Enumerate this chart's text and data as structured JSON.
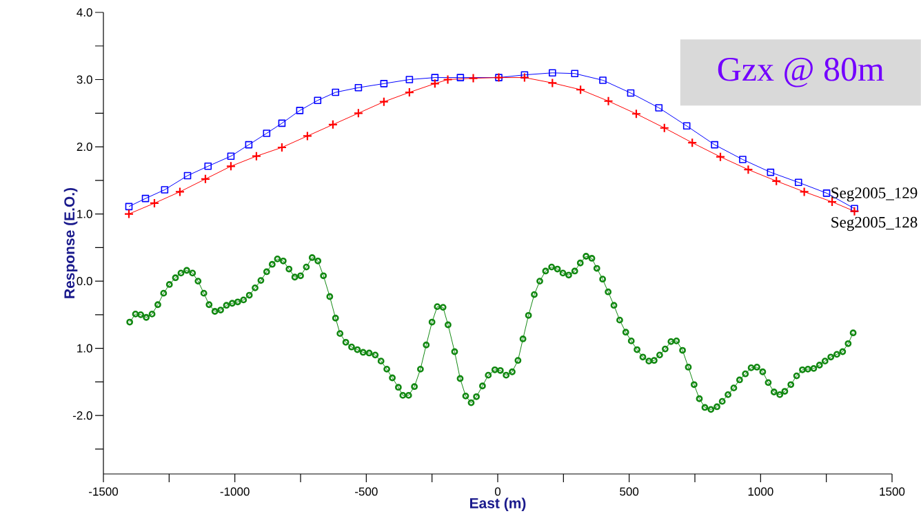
{
  "chart_data": {
    "type": "line",
    "xlabel": "East (m)",
    "ylabel": "Response (E.O.)",
    "annotations": [
      "Gzx @ 80m"
    ],
    "xlim": [
      -1500,
      1500
    ],
    "ylim": [
      -2.87,
      4.0
    ],
    "xticks": [
      -1500,
      {
        "value": -1250,
        "label": null
      },
      -1000,
      {
        "value": -750,
        "label": null
      },
      -500,
      {
        "value": -250,
        "label": null
      },
      0,
      {
        "value": 250,
        "label": null
      },
      500,
      {
        "value": 750,
        "label": null
      },
      1000,
      {
        "value": 1250,
        "label": null
      },
      1500
    ],
    "yticks": [
      {
        "value": -2.5,
        "label": null
      },
      {
        "value": -2,
        "label": "-2.0"
      },
      {
        "value": -1.5,
        "label": null
      },
      {
        "value": -1,
        "label": "1.0"
      },
      {
        "value": -0.5,
        "label": null
      },
      {
        "value": 0,
        "label": "0.0"
      },
      {
        "value": 0.5,
        "label": null
      },
      {
        "value": 1,
        "label": "1.0"
      },
      {
        "value": 1.5,
        "label": null
      },
      {
        "value": 2,
        "label": "2.0"
      },
      {
        "value": 2.5,
        "label": null
      },
      {
        "value": 3,
        "label": "3.0"
      },
      {
        "value": 3.5,
        "label": null
      },
      {
        "value": 4,
        "label": "4.0"
      }
    ],
    "series": [
      {
        "name": "Seg2005_129",
        "color": "#0000ff",
        "marker": "square",
        "x": [
          -1403,
          -1340,
          -1267,
          -1180,
          -1102,
          -1015,
          -947,
          -879,
          -821,
          -753,
          -685,
          -617,
          -530,
          -433,
          -336,
          -239,
          -142,
          4,
          102,
          208,
          293,
          400,
          506,
          613,
          719,
          825,
          932,
          1038,
          1144,
          1251,
          1357
        ],
        "values": [
          1.11,
          1.23,
          1.36,
          1.57,
          1.71,
          1.86,
          2.03,
          2.2,
          2.35,
          2.54,
          2.69,
          2.81,
          2.88,
          2.94,
          3.0,
          3.03,
          3.03,
          3.03,
          3.07,
          3.1,
          3.09,
          2.99,
          2.8,
          2.58,
          2.31,
          2.03,
          1.81,
          1.62,
          1.47,
          1.31,
          1.08
        ]
      },
      {
        "name": "Seg2005_128",
        "color": "#ff0000",
        "marker": "cross",
        "x": [
          -1403,
          -1306,
          -1209,
          -1112,
          -1015,
          -918,
          -821,
          -724,
          -627,
          -530,
          -433,
          -336,
          -239,
          -190,
          -93,
          4,
          102,
          208,
          315,
          421,
          527,
          634,
          740,
          847,
          953,
          1060,
          1166,
          1272,
          1357
        ],
        "values": [
          1.0,
          1.16,
          1.33,
          1.52,
          1.71,
          1.86,
          1.99,
          2.16,
          2.33,
          2.5,
          2.67,
          2.81,
          2.94,
          3.0,
          3.02,
          3.03,
          3.03,
          2.95,
          2.85,
          2.68,
          2.49,
          2.28,
          2.06,
          1.85,
          1.66,
          1.49,
          1.33,
          1.18,
          1.04
        ]
      },
      {
        "color": "#118811",
        "marker": "circle",
        "x": [
          -1400,
          -1378,
          -1358,
          -1337,
          -1315,
          -1293,
          -1271,
          -1249,
          -1226,
          -1205,
          -1183,
          -1161,
          -1140,
          -1118,
          -1098,
          -1076,
          -1054,
          -1032,
          -1010,
          -989,
          -967,
          -945,
          -923,
          -901,
          -879,
          -858,
          -838,
          -816,
          -794,
          -772,
          -750,
          -728,
          -706,
          -684,
          -663,
          -639,
          -617,
          -600,
          -578,
          -556,
          -534,
          -512,
          -489,
          -466,
          -444,
          -422,
          -401,
          -378,
          -361,
          -339,
          -317,
          -294,
          -272,
          -250,
          -230,
          -208,
          -189,
          -164,
          -143,
          -122,
          -101,
          -81,
          -58,
          -36,
          -11,
          10,
          32,
          55,
          77,
          96,
          117,
          139,
          160,
          182,
          205,
          227,
          248,
          270,
          293,
          314,
          336,
          358,
          377,
          399,
          420,
          442,
          464,
          487,
          508,
          530,
          552,
          575,
          595,
          616,
          637,
          659,
          680,
          703,
          725,
          747,
          767,
          788,
          811,
          834,
          854,
          876,
          898,
          920,
          942,
          964,
          986,
          1008,
          1029,
          1051,
          1073,
          1092,
          1115,
          1137,
          1159,
          1180,
          1202,
          1224,
          1245,
          1267,
          1290,
          1312,
          1333,
          1352
        ],
        "values": [
          -0.61,
          -0.49,
          -0.5,
          -0.54,
          -0.49,
          -0.35,
          -0.18,
          -0.05,
          0.05,
          0.12,
          0.16,
          0.12,
          0.0,
          -0.18,
          -0.35,
          -0.45,
          -0.43,
          -0.36,
          -0.33,
          -0.31,
          -0.28,
          -0.21,
          -0.1,
          0.01,
          0.14,
          0.25,
          0.33,
          0.3,
          0.18,
          0.06,
          0.08,
          0.21,
          0.35,
          0.3,
          0.08,
          -0.23,
          -0.55,
          -0.78,
          -0.91,
          -0.98,
          -1.02,
          -1.06,
          -1.07,
          -1.1,
          -1.19,
          -1.31,
          -1.44,
          -1.58,
          -1.7,
          -1.7,
          -1.57,
          -1.31,
          -0.95,
          -0.61,
          -0.38,
          -0.39,
          -0.65,
          -1.05,
          -1.45,
          -1.71,
          -1.81,
          -1.72,
          -1.56,
          -1.4,
          -1.32,
          -1.33,
          -1.4,
          -1.35,
          -1.18,
          -0.86,
          -0.51,
          -0.2,
          0.0,
          0.15,
          0.21,
          0.18,
          0.12,
          0.09,
          0.15,
          0.27,
          0.37,
          0.34,
          0.19,
          0.03,
          -0.16,
          -0.36,
          -0.58,
          -0.76,
          -0.89,
          -1.02,
          -1.13,
          -1.19,
          -1.18,
          -1.1,
          -1.01,
          -0.9,
          -0.89,
          -1.03,
          -1.28,
          -1.54,
          -1.75,
          -1.88,
          -1.91,
          -1.87,
          -1.79,
          -1.69,
          -1.59,
          -1.47,
          -1.38,
          -1.29,
          -1.28,
          -1.35,
          -1.51,
          -1.65,
          -1.69,
          -1.64,
          -1.54,
          -1.41,
          -1.32,
          -1.31,
          -1.3,
          -1.25,
          -1.19,
          -1.13,
          -1.09,
          -1.05,
          -0.93,
          -0.77
        ]
      }
    ]
  }
}
